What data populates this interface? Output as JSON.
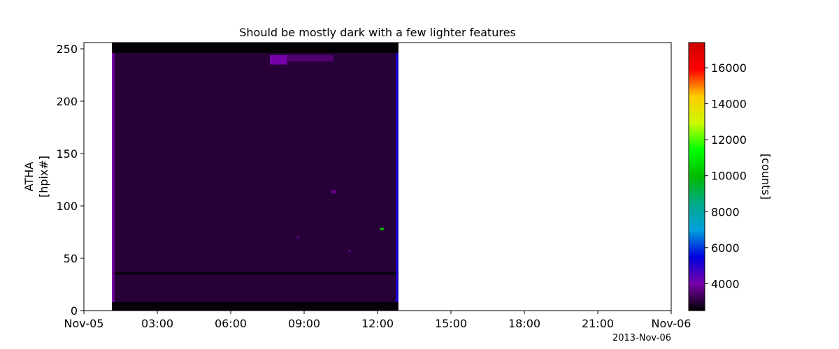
{
  "chart_data": {
    "type": "heatmap",
    "title": "Should be mostly dark with a few lighter features",
    "ylabel_line1": "ATHA",
    "ylabel_line2": "[hpix#]",
    "xlabel": "2013-Nov-06",
    "x_range_hours": [
      0,
      24
    ],
    "x_ticks": [
      {
        "hour": 0,
        "label": "Nov-05"
      },
      {
        "hour": 3,
        "label": "03:00"
      },
      {
        "hour": 6,
        "label": "06:00"
      },
      {
        "hour": 9,
        "label": "09:00"
      },
      {
        "hour": 12,
        "label": "12:00"
      },
      {
        "hour": 15,
        "label": "15:00"
      },
      {
        "hour": 18,
        "label": "18:00"
      },
      {
        "hour": 21,
        "label": "21:00"
      },
      {
        "hour": 24,
        "label": "Nov-06"
      }
    ],
    "ylim": [
      0,
      256
    ],
    "y_ticks": [
      0,
      50,
      100,
      150,
      200,
      250
    ],
    "data_extent_hours": [
      1.15,
      12.85
    ],
    "background_counts": 3000,
    "colorbar": {
      "label": "[counts]",
      "range": [
        2500,
        17400
      ],
      "ticks": [
        4000,
        6000,
        8000,
        10000,
        12000,
        14000,
        16000
      ],
      "colormap": "nipy_spectral",
      "colors": [
        "#000000",
        "#7700a8",
        "#0000dd",
        "#00a0dd",
        "#00aa88",
        "#00bb00",
        "#00ff00",
        "#ccf900",
        "#ffcc00",
        "#ff0000",
        "#cc0000"
      ]
    },
    "features": [
      {
        "name": "top-band",
        "hour_start": 1.15,
        "hour_end": 12.85,
        "hpix_start": 246,
        "hpix_end": 256,
        "counts": 2550
      },
      {
        "name": "bottom-band",
        "hour_start": 1.15,
        "hour_end": 12.85,
        "hpix_start": 0,
        "hpix_end": 8,
        "counts": 2550
      },
      {
        "name": "lower-dark-stripe",
        "hour_start": 1.15,
        "hour_end": 12.85,
        "hpix_start": 34,
        "hpix_end": 37,
        "counts": 2650
      },
      {
        "name": "left-edge-glow",
        "hour_start": 1.15,
        "hour_end": 1.25,
        "hpix_start": 8,
        "hpix_end": 246,
        "counts": 3900
      },
      {
        "name": "right-edge-glow",
        "hour_start": 12.75,
        "hour_end": 12.85,
        "hpix_start": 8,
        "hpix_end": 246,
        "counts": 5200
      },
      {
        "name": "upper-bright-patch",
        "hour_start": 7.6,
        "hour_end": 8.3,
        "hpix_start": 235,
        "hpix_end": 244,
        "counts": 4000
      },
      {
        "name": "upper-mid-glow",
        "hour_start": 8.3,
        "hour_end": 10.2,
        "hpix_start": 238,
        "hpix_end": 244,
        "counts": 3500
      },
      {
        "name": "spot-113",
        "hour_start": 10.1,
        "hour_end": 10.3,
        "hpix_start": 112,
        "hpix_end": 115,
        "counts": 3800
      },
      {
        "name": "spot-78",
        "hour_start": 12.1,
        "hour_end": 12.25,
        "hpix_start": 77,
        "hpix_end": 79,
        "counts": 10500
      },
      {
        "name": "spot-70",
        "hour_start": 8.7,
        "hour_end": 8.8,
        "hpix_start": 69,
        "hpix_end": 71,
        "counts": 3700
      },
      {
        "name": "spot-57",
        "hour_start": 10.8,
        "hour_end": 10.9,
        "hpix_start": 56,
        "hpix_end": 58,
        "counts": 3600
      }
    ]
  }
}
